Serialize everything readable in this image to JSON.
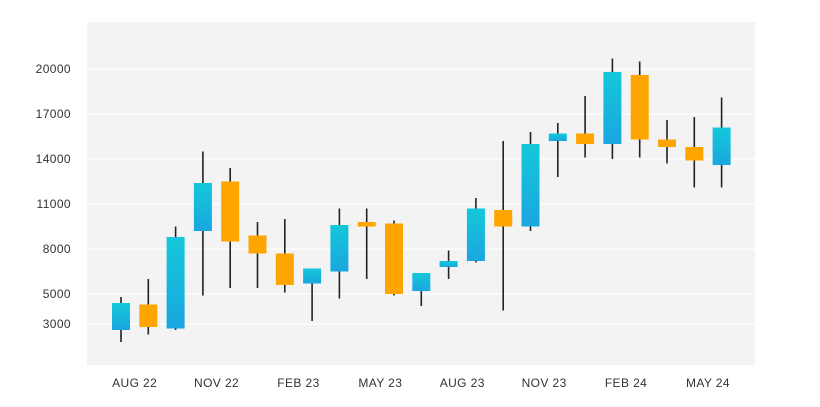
{
  "chart_data": {
    "type": "candlestick",
    "title": "",
    "xlabel": "",
    "ylabel": "",
    "grid": true,
    "legend": "none",
    "ylim": [
      1500,
      22000
    ],
    "yticks": [
      3000,
      5000,
      8000,
      11000,
      14000,
      17000,
      20000
    ],
    "x_tick_labels": [
      {
        "label": "AUG 22",
        "index": 0.5
      },
      {
        "label": "NOV 22",
        "index": 3.5
      },
      {
        "label": "FEB 23",
        "index": 6.5
      },
      {
        "label": "MAY 23",
        "index": 9.5
      },
      {
        "label": "AUG 23",
        "index": 12.5
      },
      {
        "label": "NOV 23",
        "index": 15.5
      },
      {
        "label": "FEB 24",
        "index": 18.5
      },
      {
        "label": "MAY 24",
        "index": 21.5
      }
    ],
    "colors": {
      "up_top": "#14c8d9",
      "up_bottom": "#1aa6e0",
      "down": "#ffa500",
      "wick": "#222222",
      "plot_background": "#f3f3f3",
      "grid": "#ffffff"
    },
    "candles": [
      {
        "open": 2600,
        "close": 4400,
        "high": 4800,
        "low": 1800
      },
      {
        "open": 4300,
        "close": 2800,
        "high": 6000,
        "low": 2300
      },
      {
        "open": 2700,
        "close": 8800,
        "high": 9500,
        "low": 2600
      },
      {
        "open": 9200,
        "close": 12400,
        "high": 14500,
        "low": 4900
      },
      {
        "open": 12500,
        "close": 8500,
        "high": 13400,
        "low": 5400
      },
      {
        "open": 8900,
        "close": 7700,
        "high": 9800,
        "low": 5400
      },
      {
        "open": 7700,
        "close": 5600,
        "high": 10000,
        "low": 5100
      },
      {
        "open": 5700,
        "close": 6700,
        "high": 6700,
        "low": 3200
      },
      {
        "open": 6500,
        "close": 9600,
        "high": 10700,
        "low": 4700
      },
      {
        "open": 9800,
        "close": 9500,
        "high": 10700,
        "low": 6000
      },
      {
        "open": 9700,
        "close": 5000,
        "high": 9900,
        "low": 4900
      },
      {
        "open": 5200,
        "close": 6400,
        "high": 6400,
        "low": 4200
      },
      {
        "open": 6800,
        "close": 7200,
        "high": 7900,
        "low": 6000
      },
      {
        "open": 7200,
        "close": 10700,
        "high": 11400,
        "low": 7100
      },
      {
        "open": 10600,
        "close": 9500,
        "high": 15200,
        "low": 3900
      },
      {
        "open": 9500,
        "close": 15000,
        "high": 15800,
        "low": 9200
      },
      {
        "open": 15200,
        "close": 15700,
        "high": 16400,
        "low": 12800
      },
      {
        "open": 15700,
        "close": 15000,
        "high": 18200,
        "low": 14100
      },
      {
        "open": 15000,
        "close": 19800,
        "high": 20700,
        "low": 14000
      },
      {
        "open": 19600,
        "close": 15300,
        "high": 20500,
        "low": 14100
      },
      {
        "open": 15300,
        "close": 14800,
        "high": 16600,
        "low": 13700
      },
      {
        "open": 14800,
        "close": 13900,
        "high": 16800,
        "low": 12100
      },
      {
        "open": 13600,
        "close": 16100,
        "high": 18100,
        "low": 12100
      }
    ]
  }
}
